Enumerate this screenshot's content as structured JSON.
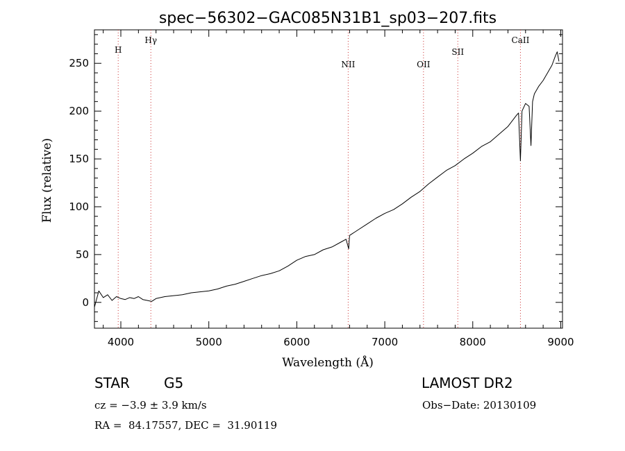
{
  "chart_data": {
    "type": "line",
    "title": "spec−56302−GAC085N31B1_sp03−207.fits",
    "xlabel": "Wavelength (Å)",
    "ylabel": "Flux (relative)",
    "xlim": [
      3700,
      9020
    ],
    "ylim": [
      -27,
      285
    ],
    "xticks": [
      4000,
      5000,
      6000,
      7000,
      8000,
      9000
    ],
    "yticks": [
      0,
      50,
      100,
      150,
      200,
      250
    ],
    "grid": false,
    "line_color": "#000000",
    "marker_line_color": "#cc3333",
    "spectral_lines": [
      {
        "name": "H",
        "wavelength": 3970
      },
      {
        "name": "Hγ",
        "wavelength": 4341
      },
      {
        "name": "NII",
        "wavelength": 6584
      },
      {
        "name": "OII",
        "wavelength": 7440
      },
      {
        "name": "SII",
        "wavelength": 7830
      },
      {
        "name": "CaII",
        "wavelength": 8542
      }
    ],
    "series": [
      {
        "x": [
          3700,
          3750,
          3800,
          3850,
          3900,
          3950,
          4000,
          4050,
          4100,
          4150,
          4200,
          4250,
          4300,
          4350,
          4400,
          4500,
          4600,
          4700,
          4800,
          4900,
          5000,
          5100,
          5200,
          5300,
          5400,
          5500,
          5600,
          5700,
          5800,
          5900,
          6000,
          6100,
          6200,
          6300,
          6400,
          6500,
          6560,
          6590,
          6600,
          6700,
          6800,
          6900,
          7000,
          7100,
          7200,
          7300,
          7400,
          7500,
          7600,
          7700,
          7800,
          7900,
          8000,
          8100,
          8200,
          8300,
          8400,
          8450,
          8500,
          8520,
          8542,
          8560,
          8600,
          8640,
          8662,
          8680,
          8700,
          8750,
          8800,
          8850,
          8900,
          8940,
          8960,
          8980
        ],
        "values": [
          -5,
          12,
          5,
          8,
          2,
          6,
          4,
          3,
          5,
          4,
          6,
          3,
          2,
          1,
          4,
          6,
          7,
          8,
          10,
          11,
          12,
          14,
          17,
          19,
          22,
          25,
          28,
          30,
          33,
          38,
          44,
          48,
          50,
          55,
          58,
          63,
          66,
          56,
          70,
          76,
          82,
          88,
          93,
          97,
          103,
          110,
          116,
          124,
          131,
          138,
          143,
          150,
          156,
          163,
          168,
          176,
          184,
          190,
          196,
          198,
          148,
          200,
          208,
          205,
          164,
          210,
          218,
          226,
          232,
          240,
          248,
          258,
          262,
          252
        ]
      }
    ]
  },
  "info": {
    "object_class": "STAR",
    "subclass": "G5",
    "survey": "LAMOST DR2",
    "cz": "cz = −3.9 ± 3.9 km/s",
    "obs_date": "Obs−Date: 20130109",
    "coords": "RA =  84.17557, DEC =  31.90119"
  }
}
